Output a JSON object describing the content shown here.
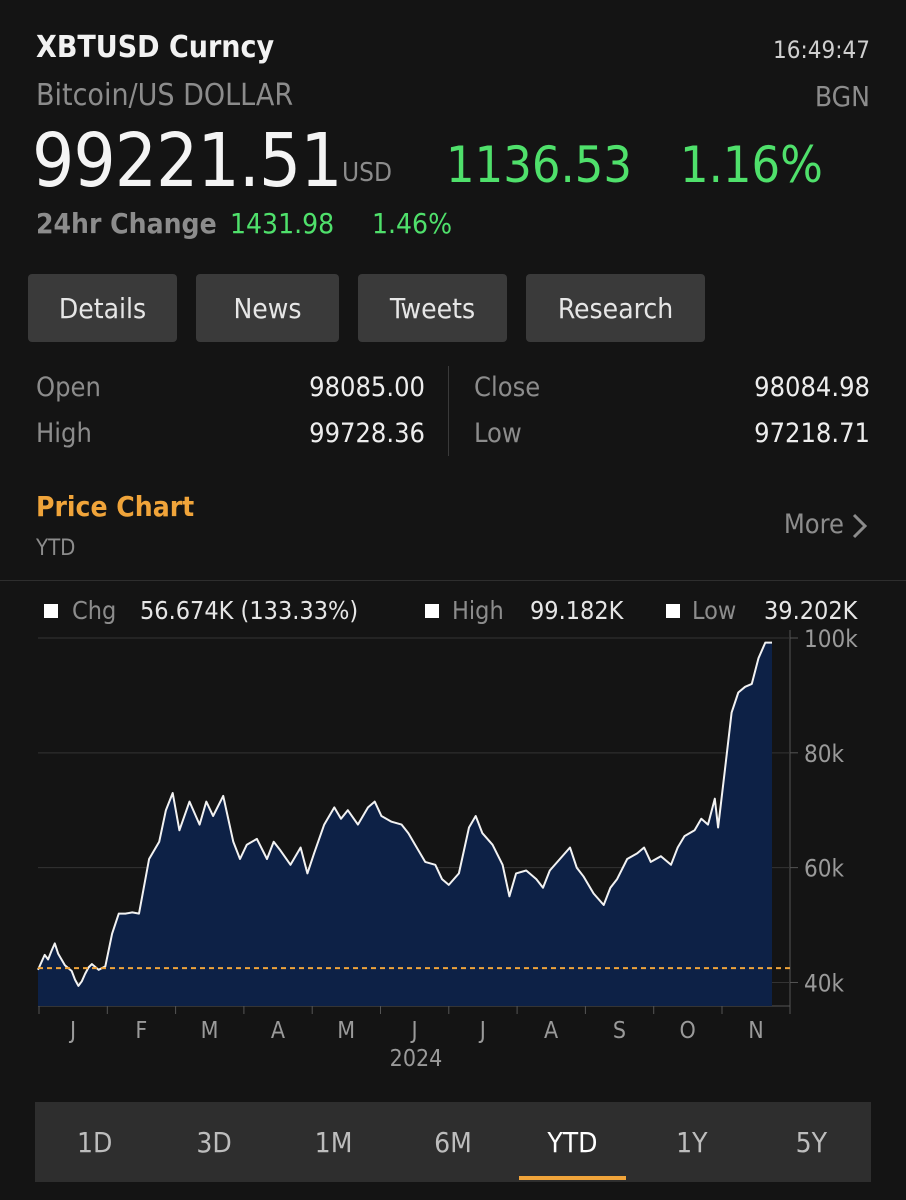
{
  "header": {
    "ticker": "XBTUSD Curncy",
    "time": "16:49:47",
    "name": "Bitcoin/US DOLLAR",
    "source": "BGN"
  },
  "quote": {
    "price": "99221.51",
    "currency": "USD",
    "change": "1136.53",
    "change_pct": "1.16%",
    "change_24h_label": "24hr Change",
    "change_24h": "1431.98",
    "change_24h_pct": "1.46%",
    "up_color": "#4fe06b"
  },
  "tabs": [
    "Details",
    "News",
    "Tweets",
    "Research"
  ],
  "stats": {
    "open_label": "Open",
    "open": "98085.00",
    "high_label": "High",
    "high": "99728.36",
    "close_label": "Close",
    "close": "98084.98",
    "low_label": "Low",
    "low": "97218.71"
  },
  "chart_section": {
    "title": "Price Chart",
    "period": "YTD",
    "more_label": "More",
    "more_icon": "chevron-right-icon",
    "accent": "#f0a43a"
  },
  "legend": {
    "chg_label": "Chg",
    "chg_value": "56.674K (133.33%)",
    "high_label": "High",
    "high_value": "99.182K",
    "low_label": "Low",
    "low_value": "39.202K"
  },
  "chart_data": {
    "type": "area",
    "xlabel": "2024",
    "x_ticks": [
      "J",
      "F",
      "M",
      "A",
      "M",
      "J",
      "J",
      "A",
      "S",
      "O",
      "N"
    ],
    "y_ticks": [
      {
        "value": 40000,
        "label": "40k"
      },
      {
        "value": 60000,
        "label": "60k"
      },
      {
        "value": 80000,
        "label": "80k"
      },
      {
        "value": 100000,
        "label": "100k"
      }
    ],
    "ylim": [
      35900,
      100000
    ],
    "xlim": [
      0,
      10.9
    ],
    "baseline": 42508,
    "fill_color": "#0d2146",
    "line_color": "#f2f2f2",
    "baseline_color": "#f0a43a",
    "grid": true,
    "x": [
      0,
      0.1,
      0.15,
      0.2,
      0.25,
      0.3,
      0.4,
      0.5,
      0.55,
      0.6,
      0.65,
      0.7,
      0.75,
      0.8,
      0.9,
      1.0,
      1.1,
      1.2,
      1.3,
      1.4,
      1.5,
      1.65,
      1.8,
      1.9,
      2.0,
      2.1,
      2.25,
      2.4,
      2.5,
      2.6,
      2.75,
      2.9,
      3.0,
      3.1,
      3.25,
      3.4,
      3.5,
      3.6,
      3.75,
      3.9,
      4.0,
      4.1,
      4.25,
      4.4,
      4.5,
      4.6,
      4.75,
      4.9,
      5.0,
      5.1,
      5.25,
      5.4,
      5.5,
      5.6,
      5.75,
      5.9,
      6.0,
      6.1,
      6.25,
      6.4,
      6.5,
      6.6,
      6.75,
      6.9,
      7.0,
      7.1,
      7.25,
      7.4,
      7.5,
      7.6,
      7.75,
      7.9,
      8.0,
      8.1,
      8.25,
      8.4,
      8.5,
      8.6,
      8.75,
      8.9,
      9.0,
      9.1,
      9.25,
      9.4,
      9.5,
      9.6,
      9.75,
      9.85,
      9.95,
      10.05,
      10.1,
      10.2,
      10.3,
      10.4,
      10.5,
      10.6,
      10.7,
      10.8,
      10.9
    ],
    "values": [
      42200,
      44800,
      44000,
      45500,
      46800,
      45000,
      43000,
      42000,
      40500,
      39400,
      40200,
      41500,
      42600,
      43200,
      42200,
      42800,
      48500,
      52000,
      52000,
      52200,
      52000,
      61500,
      64500,
      70000,
      73000,
      66500,
      71500,
      67500,
      71500,
      69000,
      72500,
      64500,
      61500,
      64000,
      65000,
      61500,
      64500,
      63000,
      60500,
      63500,
      59000,
      62500,
      67500,
      70500,
      68500,
      70000,
      67500,
      70500,
      71500,
      69000,
      68000,
      67500,
      66000,
      64000,
      61000,
      60500,
      58000,
      57000,
      59000,
      67000,
      69000,
      66000,
      64000,
      60500,
      55000,
      59000,
      59500,
      58000,
      56500,
      59500,
      61500,
      63500,
      60000,
      58500,
      55500,
      53500,
      56500,
      58000,
      61500,
      62500,
      63500,
      61000,
      62000,
      60500,
      63500,
      65500,
      66500,
      68500,
      67500,
      72000,
      67000,
      77000,
      87000,
      90500,
      91500,
      92000,
      96500,
      99200,
      99200
    ]
  },
  "ranges": [
    "1D",
    "3D",
    "1M",
    "6M",
    "YTD",
    "1Y",
    "5Y"
  ],
  "active_range": "YTD"
}
